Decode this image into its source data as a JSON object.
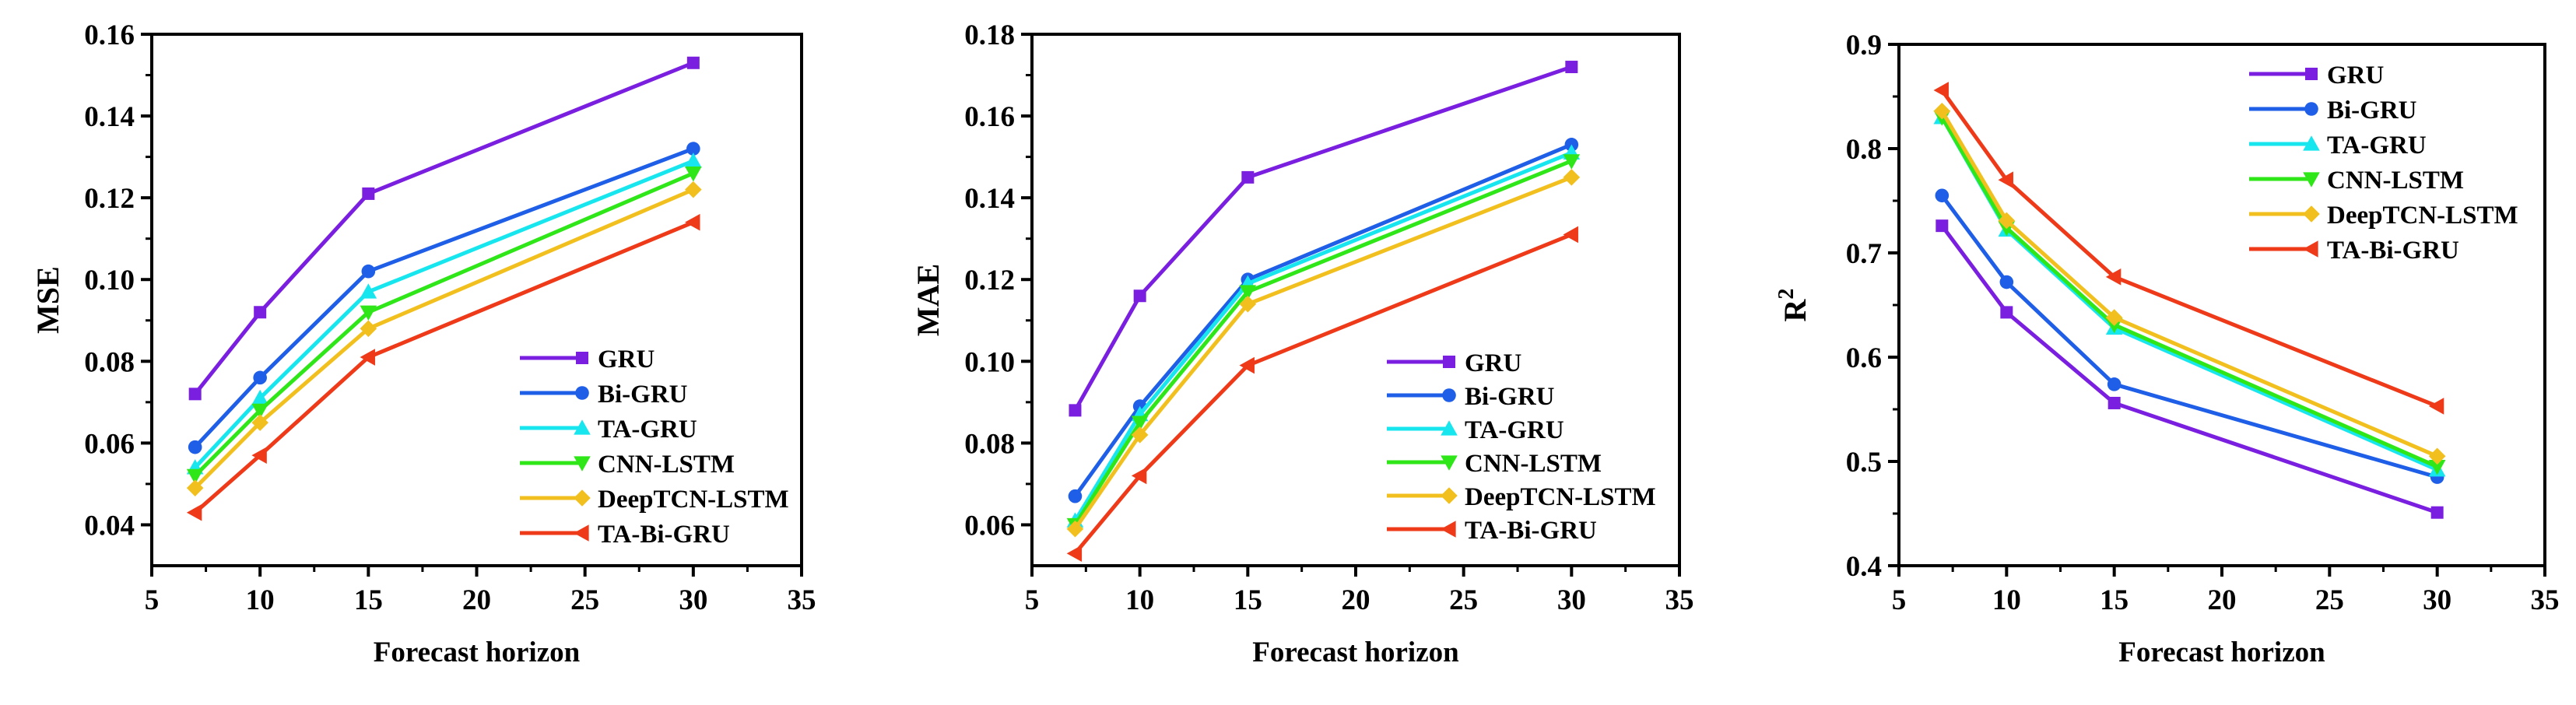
{
  "series_meta": [
    {
      "name": "GRU",
      "color": "#7a1fe0",
      "marker": "square"
    },
    {
      "name": "Bi-GRU",
      "color": "#1f5fe8",
      "marker": "circle"
    },
    {
      "name": "TA-GRU",
      "color": "#17e6ef",
      "marker": "triangle-up"
    },
    {
      "name": "CNN-LSTM",
      "color": "#2fe619",
      "marker": "triangle-down"
    },
    {
      "name": "DeepTCN-LSTM",
      "color": "#f2c01e",
      "marker": "diamond"
    },
    {
      "name": "TA-Bi-GRU",
      "color": "#ef3a1a",
      "marker": "triangle-left"
    }
  ],
  "chart_data": [
    {
      "type": "line",
      "title": "",
      "xlabel": "Forecast horizon",
      "ylabel": "MSE",
      "ylabel_sup": "",
      "xlim": [
        5,
        35
      ],
      "ylim": [
        0.03,
        0.16
      ],
      "xticks": [
        5,
        10,
        15,
        20,
        25,
        30,
        35
      ],
      "xtick_labels": [
        "5",
        "10",
        "15",
        "20",
        "25",
        "30",
        "35"
      ],
      "yticks": [
        0.04,
        0.06,
        0.08,
        0.1,
        0.12,
        0.14,
        0.16
      ],
      "ytick_labels": [
        "0.04",
        "0.06",
        "0.08",
        "0.10",
        "0.12",
        "0.14",
        "0.16"
      ],
      "legend_position": "lower-right",
      "x": [
        7,
        10,
        15,
        30
      ],
      "series": [
        {
          "name": "GRU",
          "values": [
            0.072,
            0.092,
            0.121,
            0.153
          ]
        },
        {
          "name": "Bi-GRU",
          "values": [
            0.059,
            0.076,
            0.102,
            0.132
          ]
        },
        {
          "name": "TA-GRU",
          "values": [
            0.054,
            0.071,
            0.097,
            0.129
          ]
        },
        {
          "name": "CNN-LSTM",
          "values": [
            0.052,
            0.068,
            0.092,
            0.126
          ]
        },
        {
          "name": "DeepTCN-LSTM",
          "values": [
            0.049,
            0.065,
            0.088,
            0.122
          ]
        },
        {
          "name": "TA-Bi-GRU",
          "values": [
            0.043,
            0.057,
            0.081,
            0.114
          ]
        }
      ]
    },
    {
      "type": "line",
      "title": "",
      "xlabel": "Forecast horizon",
      "ylabel": "MAE",
      "ylabel_sup": "",
      "xlim": [
        5,
        35
      ],
      "ylim": [
        0.05,
        0.18
      ],
      "xticks": [
        5,
        10,
        15,
        20,
        25,
        30,
        35
      ],
      "xtick_labels": [
        "5",
        "10",
        "15",
        "20",
        "25",
        "30",
        "35"
      ],
      "yticks": [
        0.06,
        0.08,
        0.1,
        0.12,
        0.14,
        0.16,
        0.18
      ],
      "ytick_labels": [
        "0.06",
        "0.08",
        "0.10",
        "0.12",
        "0.14",
        "0.16",
        "0.18"
      ],
      "legend_position": "lower-right",
      "x": [
        7,
        10,
        15,
        30
      ],
      "series": [
        {
          "name": "GRU",
          "values": [
            0.088,
            0.116,
            0.145,
            0.172
          ]
        },
        {
          "name": "Bi-GRU",
          "values": [
            0.067,
            0.089,
            0.12,
            0.153
          ]
        },
        {
          "name": "TA-GRU",
          "values": [
            0.061,
            0.087,
            0.119,
            0.151
          ]
        },
        {
          "name": "CNN-LSTM",
          "values": [
            0.06,
            0.085,
            0.117,
            0.149
          ]
        },
        {
          "name": "DeepTCN-LSTM",
          "values": [
            0.059,
            0.082,
            0.114,
            0.145
          ]
        },
        {
          "name": "TA-Bi-GRU",
          "values": [
            0.053,
            0.072,
            0.099,
            0.131
          ]
        }
      ]
    },
    {
      "type": "line",
      "title": "",
      "xlabel": "Forecast horizon",
      "ylabel": "R",
      "ylabel_sup": "2",
      "xlim": [
        5,
        35
      ],
      "ylim": [
        0.4,
        0.9
      ],
      "xticks": [
        5,
        10,
        15,
        20,
        25,
        30,
        35
      ],
      "xtick_labels": [
        "5",
        "10",
        "15",
        "20",
        "25",
        "30",
        "35"
      ],
      "yticks": [
        0.4,
        0.5,
        0.6,
        0.7,
        0.8,
        0.9
      ],
      "ytick_labels": [
        "0.4",
        "0.5",
        "0.6",
        "0.7",
        "0.8",
        "0.9"
      ],
      "legend_position": "top-right",
      "x": [
        7,
        10,
        15,
        30
      ],
      "series": [
        {
          "name": "GRU",
          "values": [
            0.726,
            0.643,
            0.556,
            0.451
          ]
        },
        {
          "name": "Bi-GRU",
          "values": [
            0.755,
            0.672,
            0.574,
            0.485
          ]
        },
        {
          "name": "TA-GRU",
          "values": [
            0.83,
            0.722,
            0.628,
            0.492
          ]
        },
        {
          "name": "CNN-LSTM",
          "values": [
            0.83,
            0.724,
            0.631,
            0.495
          ]
        },
        {
          "name": "DeepTCN-LSTM",
          "values": [
            0.836,
            0.731,
            0.638,
            0.505
          ]
        },
        {
          "name": "TA-Bi-GRU",
          "values": [
            0.856,
            0.77,
            0.677,
            0.553
          ]
        }
      ]
    }
  ]
}
